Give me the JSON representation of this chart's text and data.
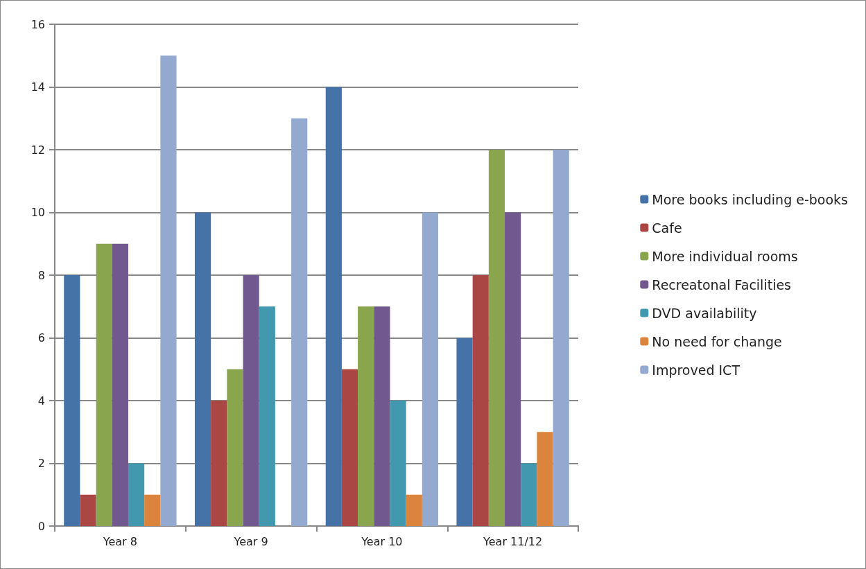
{
  "chart_data": {
    "type": "bar",
    "categories": [
      "Year 8",
      "Year 9",
      "Year 10",
      "Year 11/12"
    ],
    "series": [
      {
        "name": "More books including e-books",
        "color": "#4572a7",
        "values": [
          8,
          10,
          14,
          6
        ]
      },
      {
        "name": "Cafe",
        "color": "#aa4643",
        "values": [
          1,
          4,
          5,
          8
        ]
      },
      {
        "name": "More individual rooms",
        "color": "#89a54e",
        "values": [
          9,
          5,
          7,
          12
        ]
      },
      {
        "name": "Recreatonal Facilities",
        "color": "#71588f",
        "values": [
          9,
          8,
          7,
          10
        ]
      },
      {
        "name": "DVD availability",
        "color": "#4198af",
        "values": [
          2,
          7,
          4,
          2
        ]
      },
      {
        "name": "No need for change",
        "color": "#db843d",
        "values": [
          1,
          0,
          1,
          3
        ]
      },
      {
        "name": "Improved ICT",
        "color": "#93a9cf",
        "values": [
          15,
          13,
          10,
          12
        ]
      }
    ],
    "ylim": [
      0,
      16
    ],
    "yticks": [
      0,
      2,
      4,
      6,
      8,
      10,
      12,
      14,
      16
    ],
    "grid": "y",
    "legend": "right"
  }
}
